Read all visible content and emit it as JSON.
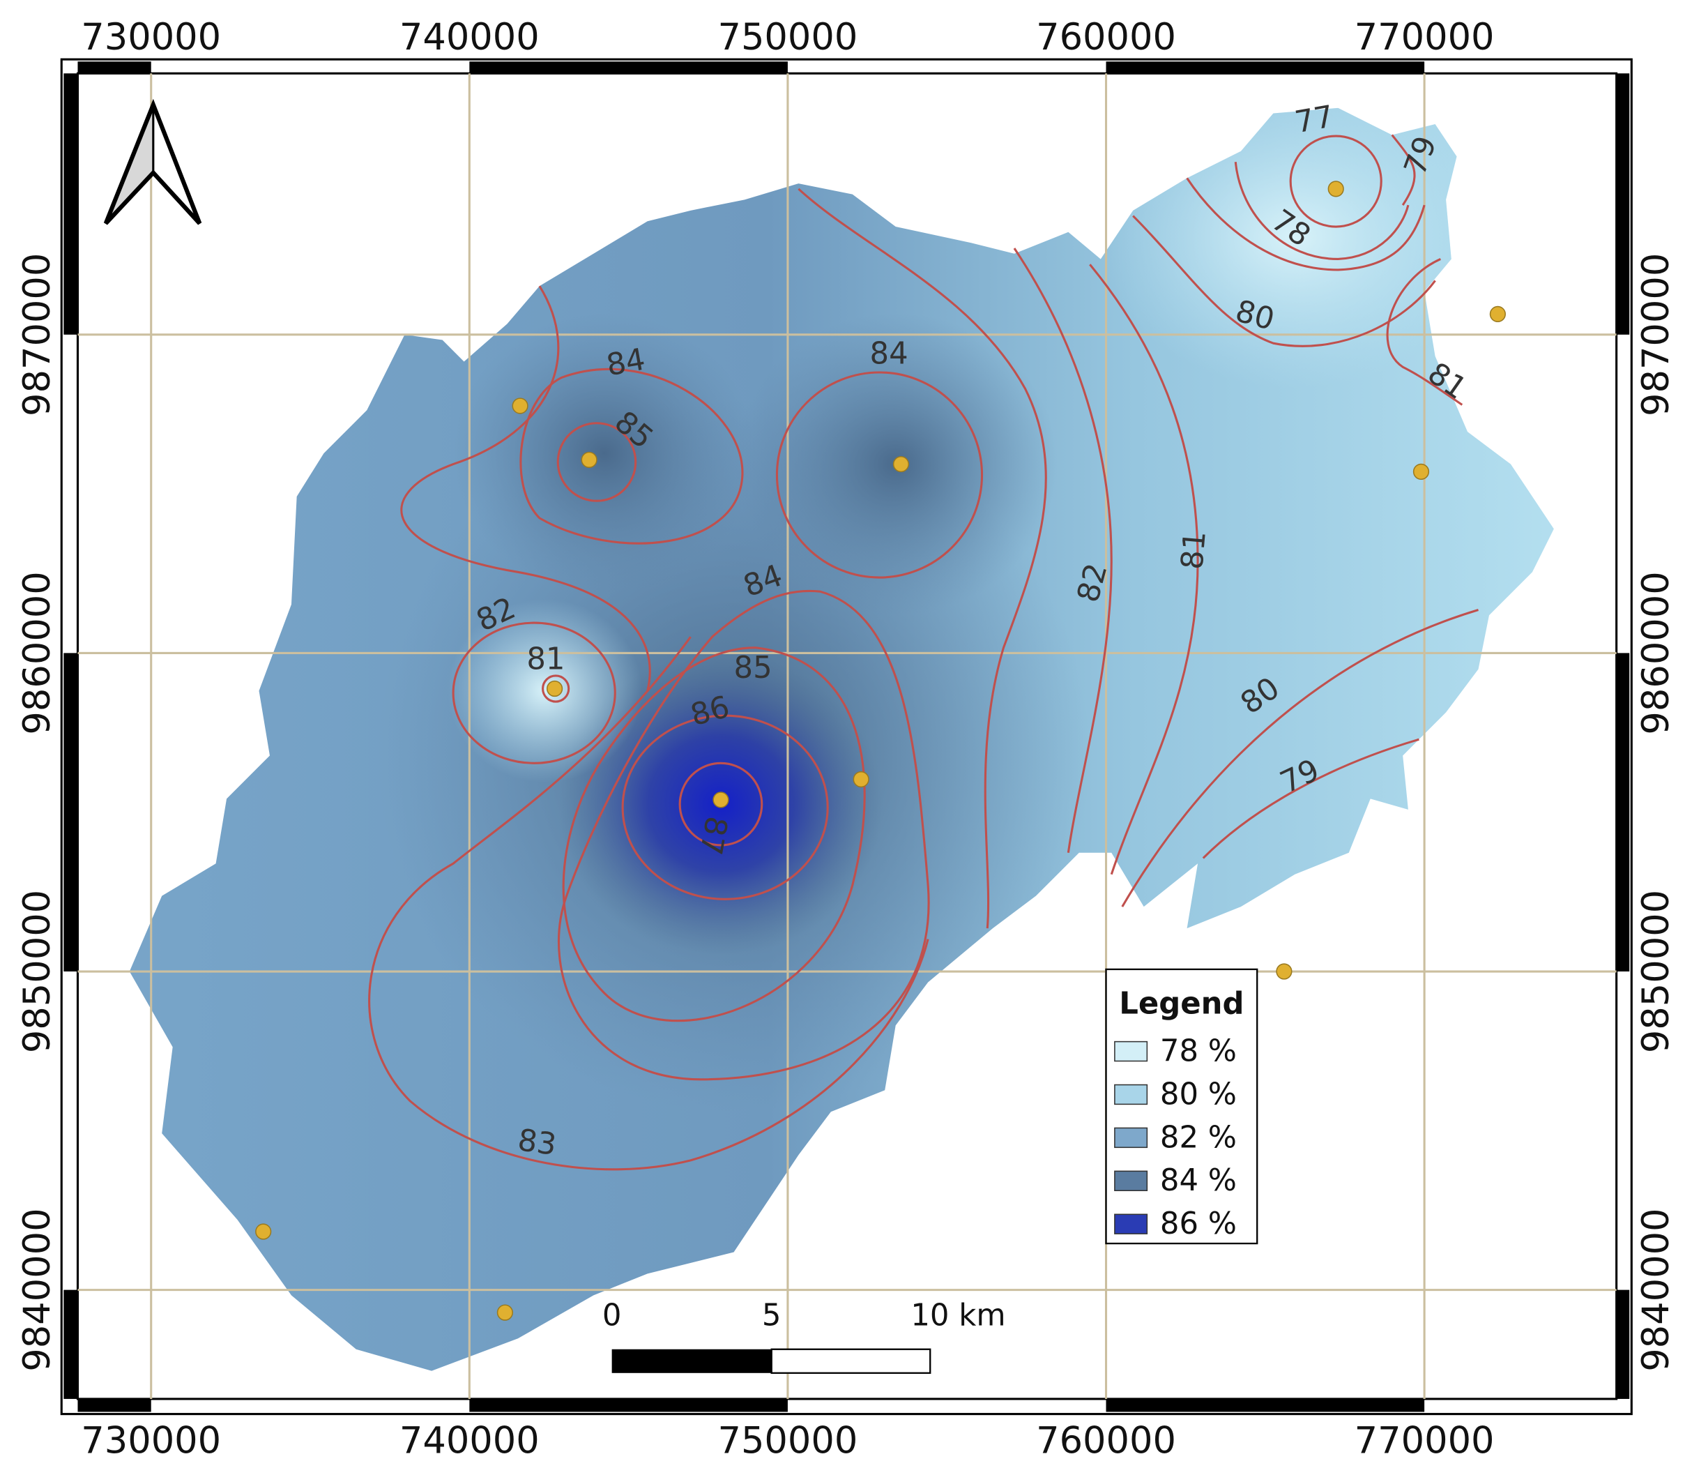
{
  "x_labels": [
    "730000",
    "740000",
    "750000",
    "760000",
    "770000"
  ],
  "y_labels": [
    "9870000",
    "9860000",
    "9850000",
    "9840000"
  ],
  "contour_labels": [
    "87",
    "86",
    "85",
    "84",
    "83",
    "84",
    "85",
    "84",
    "82",
    "81",
    "82",
    "81",
    "80",
    "79",
    "80",
    "78",
    "77",
    "79",
    "81"
  ],
  "legend": {
    "title": "Legend",
    "items": [
      {
        "label": "78 %",
        "color": "#d3eff7"
      },
      {
        "label": "80 %",
        "color": "#a9d5e9"
      },
      {
        "label": "82 %",
        "color": "#7ea8cb"
      },
      {
        "label": "84 %",
        "color": "#5a7ca0"
      },
      {
        "label": "86 %",
        "color": "#2a3cb4"
      }
    ]
  },
  "scale_bar": {
    "labels": [
      "0",
      "5",
      "10 km"
    ]
  }
}
